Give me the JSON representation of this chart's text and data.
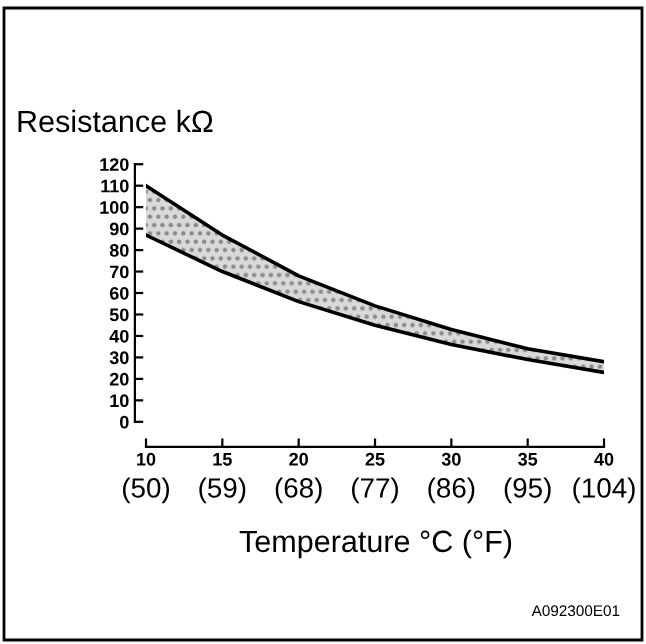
{
  "chart_data": {
    "type": "line",
    "ylabel": "Resistance kΩ",
    "xlabel": "Temperature °C (°F)",
    "x": [
      10,
      15,
      20,
      25,
      30,
      35,
      40
    ],
    "series": [
      {
        "color": "#000000",
        "values": [
          110,
          87,
          68,
          54,
          43,
          34,
          28
        ],
        "lower": [
          87,
          70,
          56,
          45,
          36,
          29,
          23
        ],
        "upper": [
          110,
          87,
          68,
          54,
          43,
          34,
          28
        ]
      },
      {
        "color": "#000000",
        "values": [
          87,
          70,
          56,
          45,
          36,
          29,
          23
        ]
      }
    ],
    "xlim": [
      10,
      40
    ],
    "xticks": [
      10,
      15,
      20,
      25,
      30,
      35,
      40
    ],
    "x2lim": [
      50,
      104
    ],
    "x2ticks": [
      {
        "value": 50,
        "label": "(50)"
      },
      {
        "value": 59,
        "label": "(59)"
      },
      {
        "value": 68,
        "label": "(68)"
      },
      {
        "value": 77,
        "label": "(77)"
      },
      {
        "value": 86,
        "label": "(86)"
      },
      {
        "value": 95,
        "label": "(95)"
      },
      {
        "value": 104,
        "label": "(104)"
      }
    ],
    "ylim": [
      0,
      120
    ],
    "yticks": [
      0,
      10,
      20,
      30,
      40,
      50,
      60,
      70,
      80,
      90,
      100,
      110,
      120
    ],
    "grid": false,
    "marker": "none",
    "line_style": "solid",
    "annotations": [
      "A092300E01"
    ]
  }
}
